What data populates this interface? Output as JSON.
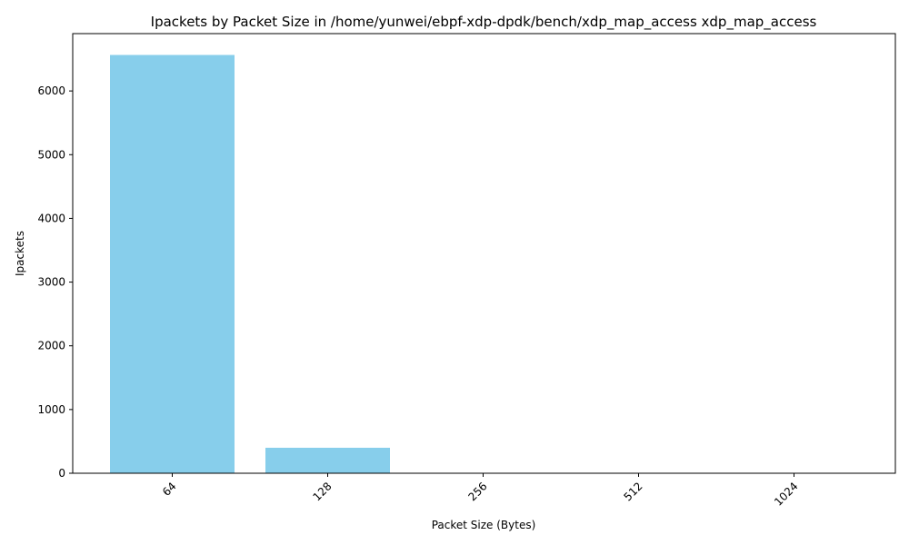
{
  "chart_data": {
    "type": "bar",
    "title": "Ipackets by Packet Size in /home/yunwei/ebpf-xdp-dpdk/bench/xdp_map_access xdp_map_access",
    "xlabel": "Packet Size (Bytes)",
    "ylabel": "Ipackets",
    "categories": [
      "64",
      "128",
      "256",
      "512",
      "1024"
    ],
    "values": [
      6565,
      400,
      0,
      0,
      0
    ],
    "ylim": [
      0,
      6900
    ],
    "yticks": [
      0,
      1000,
      2000,
      3000,
      4000,
      5000,
      6000
    ],
    "bar_color": "#87CEEB",
    "x_tick_rotation": 45,
    "grid": false,
    "legend": "none"
  }
}
